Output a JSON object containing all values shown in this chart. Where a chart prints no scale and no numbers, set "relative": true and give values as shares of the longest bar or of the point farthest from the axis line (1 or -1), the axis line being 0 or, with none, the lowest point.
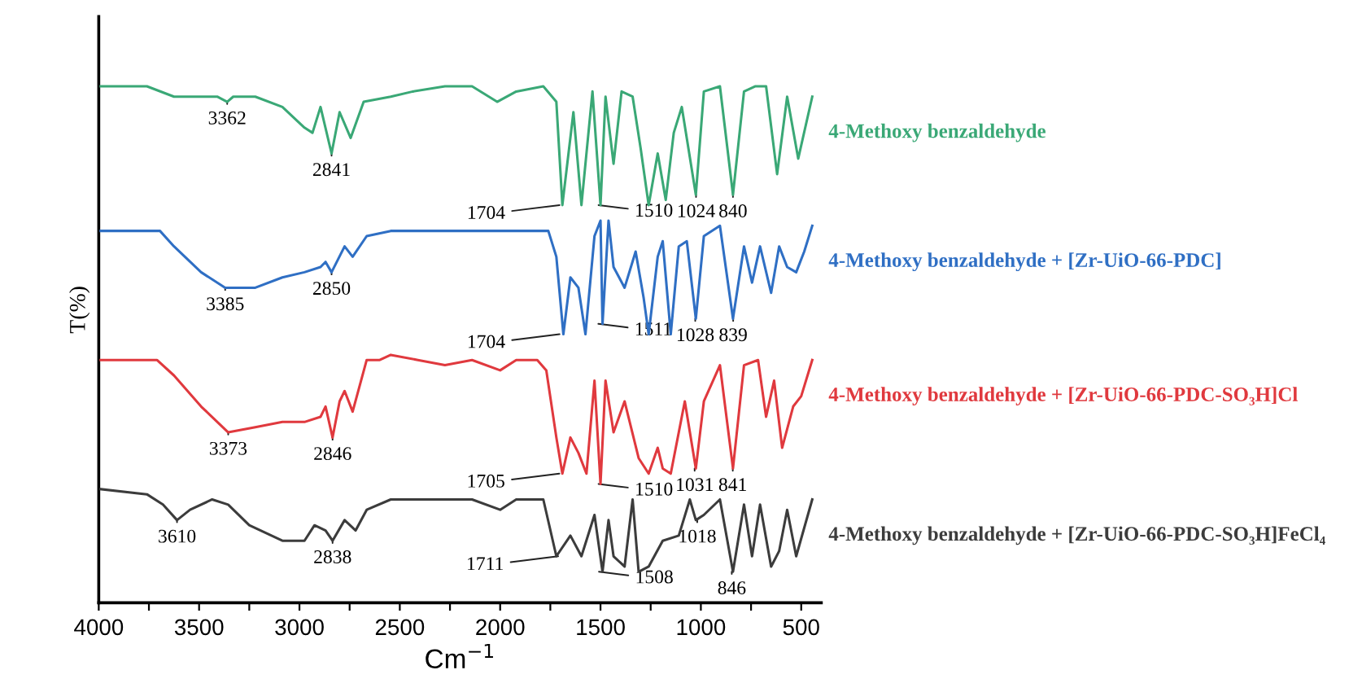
{
  "chart_data": {
    "type": "line",
    "relative": true,
    "ylabel": "T(%)",
    "xlabel": "Cm$^{−1}$",
    "legend": false,
    "grid": false,
    "tick_labels": "x",
    "marker": "none",
    "line_style": "solid",
    "xlim": [
      4000,
      400
    ],
    "xticks": [
      4000,
      {
        "value": 3750,
        "label": null
      },
      3500,
      {
        "value": 3250,
        "label": null
      },
      3000,
      {
        "value": 2750,
        "label": null
      },
      2500,
      {
        "value": 2250,
        "label": null
      },
      2000,
      {
        "value": 1750,
        "label": null
      },
      1500,
      {
        "value": 1250,
        "label": null
      },
      1000,
      {
        "value": 750,
        "label": null
      },
      500
    ],
    "series": [
      {
        "name": "4-Methoxy benzaldehyde",
        "color": "#3aa876",
        "x": [
          3990,
          3760,
          3625,
          3410,
          3360,
          3330,
          3220,
          3085,
          2975,
          2935,
          2895,
          2840,
          2800,
          2745,
          2680,
          2545,
          2435,
          2275,
          2140,
          2015,
          1920,
          1785,
          1720,
          1690,
          1635,
          1595,
          1540,
          1500,
          1475,
          1435,
          1395,
          1340,
          1300,
          1260,
          1215,
          1175,
          1135,
          1095,
          1025,
          985,
          905,
          840,
          785,
          730,
          675,
          620,
          570,
          515,
          445
        ],
        "values": [
          1.0,
          1.0,
          0.98,
          0.98,
          0.97,
          0.98,
          0.98,
          0.96,
          0.92,
          0.91,
          0.96,
          0.87,
          0.95,
          0.9,
          0.97,
          0.98,
          0.99,
          1.0,
          1.0,
          0.97,
          0.99,
          1.0,
          0.97,
          0.77,
          0.95,
          0.77,
          0.99,
          0.77,
          0.98,
          0.85,
          0.99,
          0.98,
          0.88,
          0.77,
          0.87,
          0.78,
          0.91,
          0.96,
          0.79,
          0.99,
          1.0,
          0.79,
          0.99,
          1.0,
          1.0,
          0.83,
          0.98,
          0.86,
          0.98
        ]
      },
      {
        "name": "4-Methoxy benzaldehyde + [Zr-UiO-66-PDC]",
        "color": "#2f6fc4",
        "x": [
          3990,
          3695,
          3625,
          3490,
          3370,
          3220,
          3085,
          2975,
          2895,
          2870,
          2840,
          2775,
          2735,
          2665,
          2545,
          2275,
          2000,
          1760,
          1720,
          1685,
          1650,
          1610,
          1575,
          1530,
          1500,
          1490,
          1460,
          1435,
          1380,
          1325,
          1285,
          1260,
          1215,
          1190,
          1150,
          1110,
          1070,
          1025,
          985,
          905,
          840,
          785,
          745,
          705,
          650,
          610,
          570,
          525,
          485,
          445
        ],
        "values": [
          0.72,
          0.72,
          0.69,
          0.64,
          0.61,
          0.61,
          0.63,
          0.64,
          0.65,
          0.66,
          0.64,
          0.69,
          0.67,
          0.71,
          0.72,
          0.72,
          0.72,
          0.72,
          0.67,
          0.52,
          0.63,
          0.61,
          0.52,
          0.71,
          0.74,
          0.54,
          0.74,
          0.65,
          0.61,
          0.68,
          0.59,
          0.52,
          0.67,
          0.7,
          0.52,
          0.69,
          0.7,
          0.55,
          0.71,
          0.73,
          0.55,
          0.69,
          0.62,
          0.69,
          0.6,
          0.69,
          0.65,
          0.64,
          0.68,
          0.73
        ]
      },
      {
        "name": "4-Methoxy benzaldehyde + [Zr-UiO-66-PDC-SO₃H]Cl",
        "color": "#e0393e",
        "x": [
          3990,
          3710,
          3625,
          3490,
          3355,
          3220,
          3085,
          2975,
          2895,
          2870,
          2835,
          2800,
          2775,
          2735,
          2665,
          2600,
          2545,
          2410,
          2275,
          2140,
          2000,
          1920,
          1815,
          1770,
          1720,
          1690,
          1650,
          1610,
          1570,
          1530,
          1500,
          1475,
          1435,
          1380,
          1310,
          1260,
          1215,
          1190,
          1150,
          1080,
          1025,
          985,
          905,
          840,
          785,
          715,
          675,
          635,
          595,
          540,
          500,
          445
        ],
        "values": [
          0.47,
          0.47,
          0.44,
          0.38,
          0.33,
          0.34,
          0.35,
          0.35,
          0.36,
          0.38,
          0.32,
          0.39,
          0.41,
          0.37,
          0.47,
          0.47,
          0.48,
          0.47,
          0.46,
          0.47,
          0.45,
          0.47,
          0.47,
          0.45,
          0.32,
          0.25,
          0.32,
          0.29,
          0.25,
          0.43,
          0.23,
          0.43,
          0.33,
          0.39,
          0.28,
          0.25,
          0.3,
          0.26,
          0.25,
          0.39,
          0.26,
          0.39,
          0.46,
          0.26,
          0.46,
          0.47,
          0.36,
          0.43,
          0.3,
          0.38,
          0.4,
          0.47
        ]
      },
      {
        "name": "4-Methoxy benzaldehyde + [Zr-UiO-66-PDC-SO₃H]FeCl₄",
        "color": "#3c3c3c",
        "x": [
          3990,
          3760,
          3680,
          3610,
          3545,
          3435,
          3355,
          3250,
          3085,
          2975,
          2925,
          2870,
          2835,
          2775,
          2720,
          2665,
          2545,
          2410,
          2275,
          2140,
          2000,
          1920,
          1785,
          1720,
          1650,
          1595,
          1530,
          1490,
          1460,
          1435,
          1380,
          1340,
          1310,
          1260,
          1190,
          1110,
          1055,
          1025,
          985,
          905,
          840,
          785,
          745,
          705,
          650,
          610,
          570,
          525,
          445
        ],
        "values": [
          0.22,
          0.21,
          0.19,
          0.16,
          0.18,
          0.2,
          0.19,
          0.15,
          0.12,
          0.12,
          0.15,
          0.14,
          0.12,
          0.16,
          0.14,
          0.18,
          0.2,
          0.2,
          0.2,
          0.2,
          0.18,
          0.2,
          0.2,
          0.09,
          0.13,
          0.09,
          0.17,
          0.06,
          0.16,
          0.09,
          0.07,
          0.2,
          0.06,
          0.07,
          0.12,
          0.13,
          0.2,
          0.16,
          0.17,
          0.2,
          0.06,
          0.19,
          0.09,
          0.19,
          0.07,
          0.1,
          0.18,
          0.09,
          0.2
        ]
      }
    ],
    "annotations": [
      {
        "text": "3362",
        "x": 3360,
        "y": 0.97
      },
      {
        "text": "2841",
        "x": 2840,
        "y": 0.87
      },
      {
        "text": "1704",
        "x": 1704,
        "y": 0.77
      },
      {
        "text": "1510",
        "x": 1510,
        "y": 0.77
      },
      {
        "text": "1024",
        "x": 1024,
        "y": 0.79
      },
      {
        "text": "840",
        "x": 840,
        "y": 0.79
      },
      {
        "text": "3385",
        "x": 3370,
        "y": 0.61
      },
      {
        "text": "2850",
        "x": 2840,
        "y": 0.64
      },
      {
        "text": "1704",
        "x": 1704,
        "y": 0.52
      },
      {
        "text": "1511",
        "x": 1511,
        "y": 0.54
      },
      {
        "text": "1028",
        "x": 1028,
        "y": 0.55
      },
      {
        "text": "839",
        "x": 839,
        "y": 0.55
      },
      {
        "text": "3373",
        "x": 3355,
        "y": 0.33
      },
      {
        "text": "2846",
        "x": 2835,
        "y": 0.32
      },
      {
        "text": "1705",
        "x": 1705,
        "y": 0.25
      },
      {
        "text": "1510",
        "x": 1510,
        "y": 0.23
      },
      {
        "text": "1031",
        "x": 1031,
        "y": 0.26
      },
      {
        "text": "841",
        "x": 841,
        "y": 0.26
      },
      {
        "text": "3610",
        "x": 3610,
        "y": 0.16
      },
      {
        "text": "2838",
        "x": 2835,
        "y": 0.12
      },
      {
        "text": "1711",
        "x": 1711,
        "y": 0.09
      },
      {
        "text": "1508",
        "x": 1508,
        "y": 0.06
      },
      {
        "text": "1018",
        "x": 1018,
        "y": 0.16
      },
      {
        "text": "846",
        "x": 846,
        "y": 0.06
      }
    ]
  }
}
